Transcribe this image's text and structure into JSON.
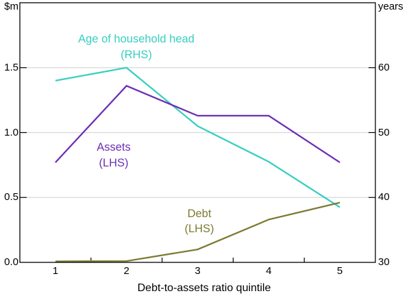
{
  "chart_data": {
    "type": "line",
    "title": "",
    "xlabel": "Debt-to-assets ratio quintile",
    "x_tick_labels": [
      "1",
      "2",
      "3",
      "4",
      "5"
    ],
    "categories": [
      1,
      2,
      3,
      4,
      5
    ],
    "left_axis": {
      "unit": "$m",
      "tick_labels": [
        "0.0",
        "0.5",
        "1.0",
        "1.5"
      ],
      "range": [
        0,
        2
      ]
    },
    "right_axis": {
      "unit": "years",
      "tick_labels": [
        "30",
        "40",
        "50",
        "60"
      ],
      "range": [
        30,
        70
      ]
    },
    "grid": "horizontal-only",
    "colors": {
      "gridline": "#D9D9D9",
      "axis": "#000000",
      "text": "#000000"
    },
    "series": [
      {
        "key": "age",
        "name": "Age of household head",
        "axis": "RHS",
        "color": "#38CFC0",
        "values": [
          58,
          60,
          51,
          45.5,
          38.5
        ]
      },
      {
        "key": "assets",
        "name": "Assets",
        "axis": "LHS",
        "color": "#6B2FB3",
        "values": [
          0.77,
          1.36,
          1.13,
          1.13,
          0.77
        ]
      },
      {
        "key": "debt",
        "name": "Debt",
        "axis": "LHS",
        "color": "#7E7B33",
        "values": [
          0.0,
          0.01,
          0.1,
          0.33,
          0.46
        ]
      }
    ],
    "annotations": [
      {
        "key": "age",
        "lines": [
          "Age of household head",
          "(RHS)"
        ],
        "color": "#38CFC0",
        "x": 199,
        "y": 57,
        "line_height": 23
      },
      {
        "key": "assets",
        "lines": [
          "Assets",
          "(LHS)"
        ],
        "color": "#6B2FB3",
        "x": 166,
        "y": 215,
        "line_height": 23
      },
      {
        "key": "debt",
        "lines": [
          "Debt",
          "(LHS)"
        ],
        "color": "#7E7B33",
        "x": 291,
        "y": 312,
        "line_height": 22
      }
    ]
  }
}
